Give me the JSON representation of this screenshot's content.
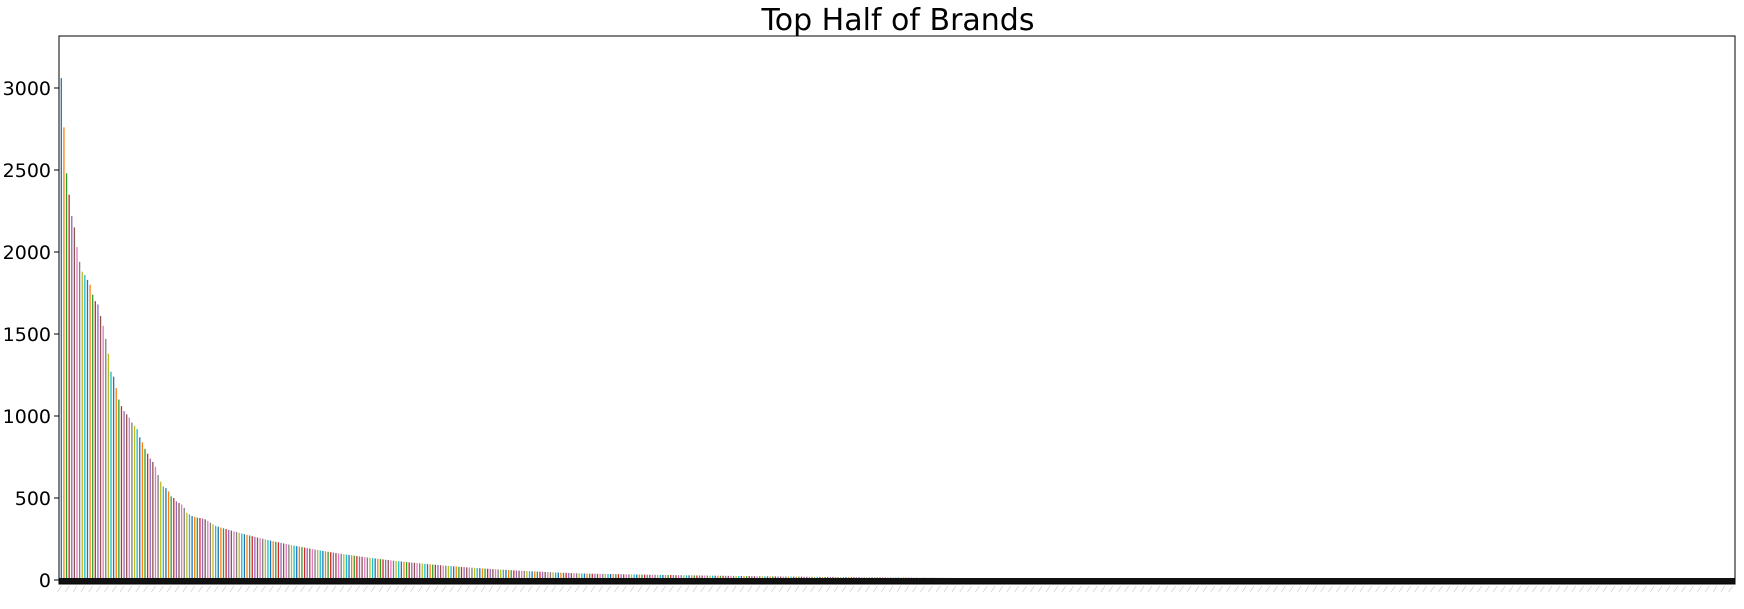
{
  "chart_data": {
    "type": "bar",
    "title": "Top Half of Brands",
    "xlabel": "",
    "ylabel": "",
    "ylim": [
      0,
      3300
    ],
    "yticks": [
      0,
      500,
      1000,
      1500,
      2000,
      2500,
      3000
    ],
    "grid": false,
    "legend": "none",
    "x_tick_labels": "illegible (rotated brand names, one per bar)",
    "bar_count": 640,
    "colors": [
      "#1f77b4",
      "#ff7f0e",
      "#2ca02c",
      "#d62728",
      "#9467bd",
      "#8c564b",
      "#e377c2",
      "#7f7f7f",
      "#bcbd22",
      "#17becf"
    ],
    "values_note": "leading bars listed explicitly; remaining bars follow a smooth decay",
    "leading_values": [
      3060,
      2760,
      2480,
      2350,
      2220,
      2150,
      2030,
      1940,
      1880,
      1860,
      1830,
      1800,
      1740,
      1700,
      1680,
      1610,
      1550,
      1470,
      1380,
      1270,
      1240,
      1170,
      1100,
      1060,
      1030,
      1010,
      990,
      960,
      940,
      920,
      870,
      840,
      800,
      770,
      740,
      720,
      690,
      640,
      600,
      570,
      560,
      540,
      510,
      500,
      480,
      470,
      460,
      440,
      410,
      400,
      390,
      385,
      380,
      378,
      375,
      370,
      360,
      350,
      340,
      330
    ]
  }
}
